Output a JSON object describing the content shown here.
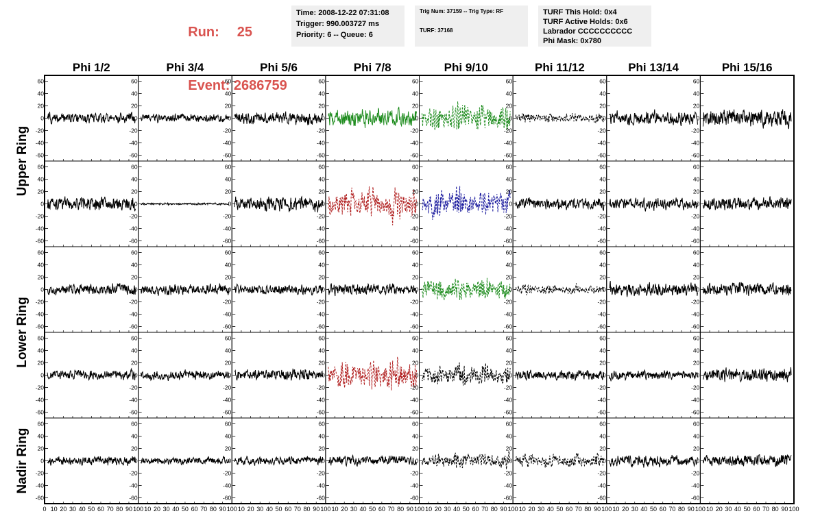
{
  "header": {
    "run_label": "Run:",
    "run_value": "25",
    "event_label": "Event:",
    "event_value": "2686759",
    "accent_color": "#d9534f"
  },
  "info_time": {
    "line1": "Time: 2008-12-22 07:31:08",
    "line2": "Trigger: 990.003727 ms",
    "line3": "Priority: 6 -- Queue: 6"
  },
  "info_trig": {
    "line1": "Trig Num: 37159 -- Trig Type: RF",
    "line2": "TURF: 37168"
  },
  "info_turf": {
    "line1": "TURF This Hold: 0x4",
    "line2": "TURF Active Holds: 0x6",
    "line3": "Labrador CCCCCCCCCC",
    "line4": "Phi Mask: 0x780"
  },
  "chart_data": {
    "type": "line",
    "columns": [
      "Phi 1/2",
      "Phi 3/4",
      "Phi 5/6",
      "Phi 7/8",
      "Phi 9/10",
      "Phi 11/12",
      "Phi 13/14",
      "Phi 15/16"
    ],
    "row_labels": [
      {
        "label": "Upper Ring",
        "rows": [
          0,
          1
        ]
      },
      {
        "label": "Lower Ring",
        "rows": [
          2,
          3
        ]
      },
      {
        "label": "Nadir Ring",
        "rows": [
          4,
          4
        ]
      }
    ],
    "ylim": [
      -65,
      65
    ],
    "xlim": [
      0,
      100
    ],
    "y_ticks": [
      -60,
      -40,
      -20,
      0,
      20,
      40,
      60
    ],
    "x_ticks": [
      0,
      10,
      20,
      30,
      40,
      50,
      60,
      70,
      80,
      90,
      100
    ],
    "samples_per_trace": 260,
    "colors": {
      "black": "#000000",
      "green": "#1e8c1e",
      "red": "#b22222",
      "blue": "#1f1fa0"
    },
    "panels": [
      [
        {
          "c": "black",
          "a": 10,
          "d": 0
        },
        {
          "c": "black",
          "a": 8,
          "d": 0
        },
        {
          "c": "black",
          "a": 11,
          "d": 0
        },
        {
          "c": "green",
          "a": 17,
          "d": 0
        },
        {
          "c": "green",
          "a": 26,
          "d": 1
        },
        {
          "c": "black",
          "a": 9,
          "d": 1
        },
        {
          "c": "black",
          "a": 14,
          "d": 0
        },
        {
          "c": "black",
          "a": 17,
          "d": 0
        }
      ],
      [
        {
          "c": "black",
          "a": 13,
          "d": 0
        },
        {
          "c": "black",
          "a": 2,
          "d": 0
        },
        {
          "c": "black",
          "a": 14,
          "d": 0
        },
        {
          "c": "red",
          "a": 28,
          "d": 1
        },
        {
          "c": "blue",
          "a": 26,
          "d": 1
        },
        {
          "c": "black",
          "a": 11,
          "d": 0
        },
        {
          "c": "black",
          "a": 11,
          "d": 0
        },
        {
          "c": "black",
          "a": 13,
          "d": 0
        }
      ],
      [
        {
          "c": "black",
          "a": 11,
          "d": 0
        },
        {
          "c": "black",
          "a": 10,
          "d": 0
        },
        {
          "c": "black",
          "a": 10,
          "d": 0
        },
        {
          "c": "black",
          "a": 11,
          "d": 0
        },
        {
          "c": "green",
          "a": 22,
          "d": 1
        },
        {
          "c": "black",
          "a": 9,
          "d": 1
        },
        {
          "c": "black",
          "a": 13,
          "d": 0
        },
        {
          "c": "black",
          "a": 13,
          "d": 0
        }
      ],
      [
        {
          "c": "black",
          "a": 10,
          "d": 0
        },
        {
          "c": "black",
          "a": 9,
          "d": 0
        },
        {
          "c": "black",
          "a": 11,
          "d": 0
        },
        {
          "c": "red",
          "a": 27,
          "d": 1
        },
        {
          "c": "black",
          "a": 20,
          "d": 1
        },
        {
          "c": "black",
          "a": 10,
          "d": 0
        },
        {
          "c": "black",
          "a": 9,
          "d": 0
        },
        {
          "c": "black",
          "a": 13,
          "d": 0
        }
      ],
      [
        {
          "c": "black",
          "a": 9,
          "d": 0
        },
        {
          "c": "black",
          "a": 7,
          "d": 0
        },
        {
          "c": "black",
          "a": 8,
          "d": 0
        },
        {
          "c": "black",
          "a": 9,
          "d": 0
        },
        {
          "c": "black",
          "a": 15,
          "d": 1
        },
        {
          "c": "black",
          "a": 13,
          "d": 1
        },
        {
          "c": "black",
          "a": 11,
          "d": 0
        },
        {
          "c": "black",
          "a": 12,
          "d": 0
        }
      ]
    ]
  }
}
